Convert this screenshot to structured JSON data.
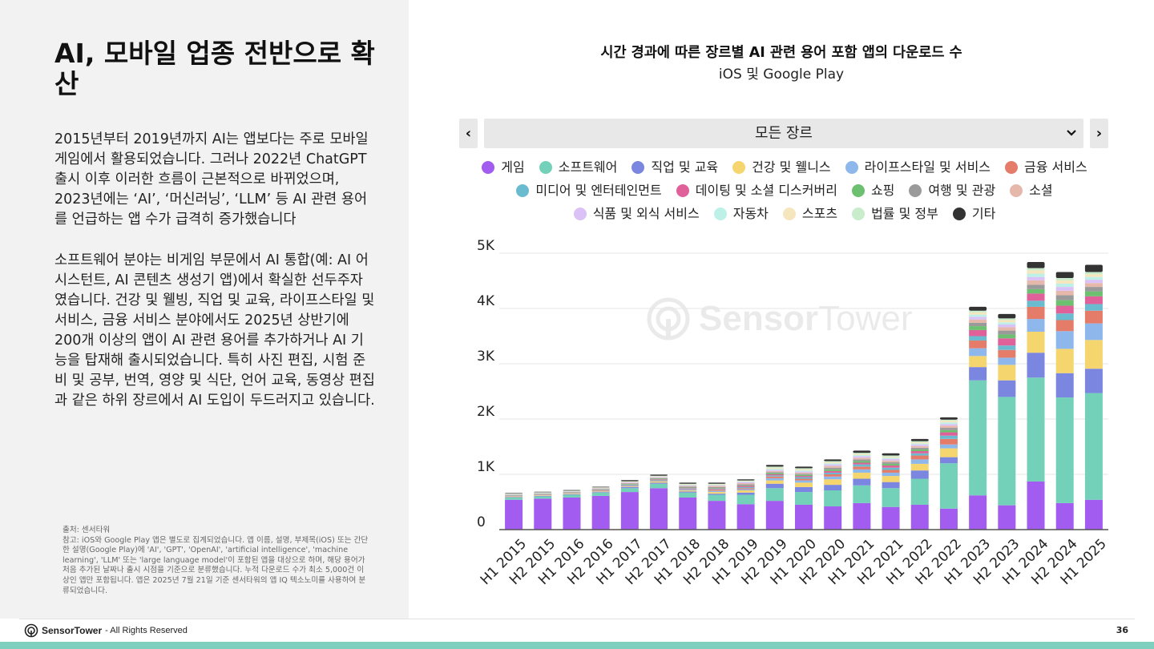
{
  "slide": {
    "title": "AI, 모바일 업종 전반으로 확산",
    "paragraph1": "2015년부터 2019년까지 AI는 앱보다는 주로 모바일 게임에서 활용되었습니다. 그러나 2022년 ChatGPT 출시 이후 이러한 흐름이 근본적으로 바뀌었으며, 2023년에는 ‘AI’, ‘머신러닝’, ‘LLM’ 등 AI 관련 용어를 언급하는 앱 수가 급격히 증가했습니다",
    "paragraph2": "소프트웨어 분야는 비게임 부문에서 AI 통합(예: AI 어시스턴트, AI 콘텐츠 생성기 앱)에서 확실한 선두주자였습니다. 건강 및 웰빙, 직업 및 교육, 라이프스타일 및 서비스, 금융 서비스 분야에서도 2025년 상반기에 200개 이상의 앱이 AI 관련 용어를 추가하거나 AI 기능을 탑재해 출시되었습니다. 특히 사진 편집, 시험 준비 및 공부, 번역, 영양 및 식단, 언어 교육, 동영상 편집과 같은 하위 장르에서 AI 도입이 두드러지고 있습니다.",
    "source": "출처: 센서타워\n참고: iOS와 Google Play 앱은 별도로 집계되었습니다. 앱 이름, 설명, 부제목(iOS) 또는 간단한 설명(Google Play)에 'AI', 'GPT', 'OpenAI', 'artificial intelligence', 'machine learning', 'LLM' 또는 'large language model'이 포함된 앱을 대상으로 하며, 해당 용어가 처음 추가된 날짜나 출시 시점을 기준으로 분류했습니다. 누적 다운로드 수가 최소 5,000건 이상인 앱만 포함됩니다. 앱은 2025년 7월 21일 기준 센서타워의 앱 IQ 텍소노미를 사용하여 분류되었습니다."
  },
  "footer": {
    "brand": "SensorTower",
    "rights": "- All Rights Reserved",
    "page_number": "36"
  },
  "watermark": {
    "bold": "Sensor",
    "light": "Tower"
  },
  "selector": {
    "prev_glyph": "‹",
    "next_glyph": "›",
    "label": "모든 장르"
  },
  "chart_data": {
    "type": "bar",
    "stacked": true,
    "title": "시간 경과에 따른 장르별 AI 관련 용어 포함 앱의 다운로드 수",
    "subtitle": "iOS 및 Google Play",
    "xlabel": "",
    "ylabel": "",
    "ylim": [
      0,
      5000
    ],
    "yticks": [
      0,
      1000,
      2000,
      3000,
      4000,
      5000
    ],
    "ytick_labels": [
      "0",
      "1K",
      "2K",
      "3K",
      "4K",
      "5K"
    ],
    "grid": true,
    "legend_position": "top",
    "categories": [
      "H1 2015",
      "H2 2015",
      "H1 2016",
      "H2 2016",
      "H1 2017",
      "H2 2017",
      "H1 2018",
      "H2 2018",
      "H1 2019",
      "H2 2019",
      "H1 2020",
      "H2 2020",
      "H1 2021",
      "H2 2021",
      "H1 2022",
      "H2 2022",
      "H1 2023",
      "H2 2023",
      "H1 2024",
      "H2 2024",
      "H1 2025"
    ],
    "series": [
      {
        "name": "게임",
        "color": "#a25cf0",
        "values": [
          540,
          560,
          580,
          610,
          680,
          750,
          580,
          520,
          460,
          520,
          450,
          420,
          480,
          410,
          450,
          380,
          620,
          440,
          870,
          480,
          540
        ]
      },
      {
        "name": "소프트웨어",
        "color": "#72d1b8",
        "values": [
          40,
          40,
          50,
          60,
          70,
          80,
          90,
          110,
          170,
          230,
          230,
          290,
          320,
          340,
          470,
          820,
          2080,
          1960,
          1880,
          1910,
          1930
        ]
      },
      {
        "name": "직업 및 교육",
        "color": "#7b86e0",
        "values": [
          10,
          10,
          10,
          10,
          20,
          20,
          20,
          20,
          40,
          80,
          90,
          100,
          120,
          110,
          150,
          110,
          240,
          300,
          450,
          440,
          440
        ]
      },
      {
        "name": "건강 및 웰니스",
        "color": "#f5d56e",
        "values": [
          10,
          10,
          10,
          10,
          10,
          20,
          20,
          30,
          40,
          60,
          80,
          100,
          110,
          110,
          120,
          160,
          200,
          280,
          380,
          440,
          520
        ]
      },
      {
        "name": "라이프스타일 및 서비스",
        "color": "#8eb7ec",
        "values": [
          5,
          5,
          5,
          10,
          10,
          10,
          20,
          20,
          20,
          40,
          40,
          50,
          60,
          60,
          80,
          70,
          140,
          130,
          230,
          320,
          300
        ]
      },
      {
        "name": "금융 서비스",
        "color": "#e57c6a",
        "values": [
          5,
          5,
          5,
          10,
          10,
          10,
          10,
          20,
          20,
          30,
          30,
          40,
          50,
          50,
          70,
          100,
          140,
          140,
          220,
          200,
          230
        ]
      },
      {
        "name": "미디어 및 엔터테인먼트",
        "color": "#6bbbd0",
        "values": [
          5,
          5,
          5,
          5,
          10,
          10,
          10,
          10,
          20,
          20,
          30,
          30,
          40,
          40,
          40,
          60,
          80,
          80,
          110,
          120,
          120
        ]
      },
      {
        "name": "데이팅 및 소셜 디스커버리",
        "color": "#e0609a",
        "values": [
          5,
          5,
          5,
          5,
          5,
          10,
          10,
          10,
          20,
          20,
          20,
          30,
          30,
          40,
          40,
          60,
          110,
          130,
          130,
          140,
          140
        ]
      },
      {
        "name": "쇼핑",
        "color": "#6cc070",
        "values": [
          5,
          5,
          5,
          5,
          10,
          10,
          10,
          10,
          10,
          20,
          20,
          30,
          30,
          30,
          30,
          40,
          70,
          70,
          80,
          100,
          90
        ]
      },
      {
        "name": "여행 및 관광",
        "color": "#9a9a9a",
        "values": [
          5,
          5,
          5,
          10,
          10,
          10,
          10,
          20,
          20,
          20,
          20,
          30,
          30,
          30,
          30,
          40,
          60,
          70,
          80,
          90,
          80
        ]
      },
      {
        "name": "소셜",
        "color": "#e6b8ac",
        "values": [
          5,
          5,
          5,
          10,
          10,
          10,
          10,
          20,
          20,
          20,
          20,
          30,
          30,
          30,
          30,
          40,
          60,
          60,
          80,
          80,
          70
        ]
      },
      {
        "name": "식품 및 외식 서비스",
        "color": "#dbc2f6",
        "values": [
          5,
          5,
          5,
          5,
          10,
          10,
          10,
          10,
          20,
          20,
          20,
          30,
          30,
          30,
          30,
          30,
          50,
          50,
          60,
          70,
          60
        ]
      },
      {
        "name": "자동차",
        "color": "#bdf0e6",
        "values": [
          5,
          5,
          5,
          5,
          5,
          10,
          10,
          10,
          10,
          20,
          20,
          20,
          20,
          20,
          20,
          30,
          40,
          40,
          60,
          60,
          50
        ]
      },
      {
        "name": "스포츠",
        "color": "#f6e6be",
        "values": [
          5,
          5,
          5,
          5,
          10,
          10,
          10,
          10,
          10,
          20,
          20,
          20,
          20,
          20,
          20,
          30,
          40,
          40,
          60,
          60,
          50
        ]
      },
      {
        "name": "법률 및 정부",
        "color": "#c9eccb",
        "values": [
          5,
          5,
          5,
          5,
          5,
          5,
          10,
          10,
          10,
          20,
          20,
          20,
          20,
          20,
          20,
          20,
          30,
          30,
          40,
          40,
          40
        ]
      },
      {
        "name": "기타",
        "color": "#333333",
        "values": [
          10,
          10,
          10,
          10,
          20,
          20,
          20,
          20,
          20,
          30,
          30,
          30,
          40,
          40,
          40,
          40,
          70,
          80,
          110,
          110,
          130
        ]
      }
    ]
  }
}
